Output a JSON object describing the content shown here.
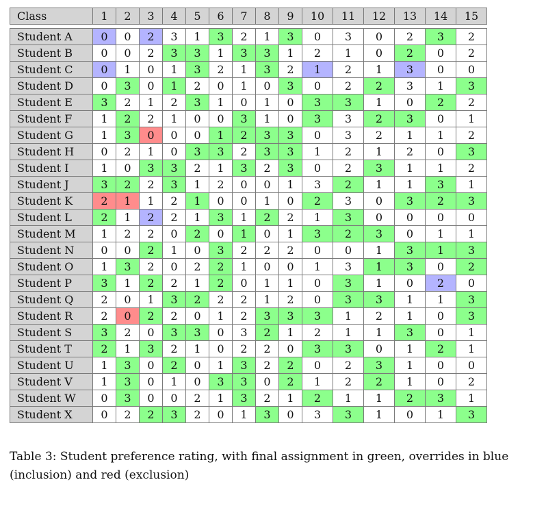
{
  "table": {
    "corner_label": "Class",
    "columns": [
      "1",
      "2",
      "3",
      "4",
      "5",
      "6",
      "7",
      "8",
      "9",
      "10",
      "11",
      "12",
      "13",
      "14",
      "15"
    ],
    "legend": {
      "g": "#8cff8c",
      "b": "#b4b4ff",
      "r": "#ff8c8c"
    },
    "rows": [
      {
        "name": "Student A",
        "values": [
          0,
          0,
          2,
          3,
          1,
          3,
          2,
          1,
          3,
          0,
          3,
          0,
          2,
          3,
          2
        ],
        "marks": [
          "b",
          "",
          "b",
          "",
          "",
          "g",
          "",
          "",
          "g",
          "",
          "",
          "",
          "",
          "g",
          ""
        ]
      },
      {
        "name": "Student B",
        "values": [
          0,
          0,
          2,
          3,
          3,
          1,
          3,
          3,
          1,
          2,
          1,
          0,
          2,
          0,
          2
        ],
        "marks": [
          "",
          "",
          "",
          "g",
          "g",
          "",
          "g",
          "g",
          "",
          "",
          "",
          "",
          "g",
          "",
          ""
        ]
      },
      {
        "name": "Student C",
        "values": [
          0,
          1,
          0,
          1,
          3,
          2,
          1,
          3,
          2,
          1,
          2,
          1,
          3,
          0,
          0
        ],
        "marks": [
          "b",
          "",
          "",
          "",
          "g",
          "",
          "",
          "g",
          "",
          "b",
          "",
          "",
          "b",
          "",
          ""
        ]
      },
      {
        "name": "Student D",
        "values": [
          0,
          3,
          0,
          1,
          2,
          0,
          1,
          0,
          3,
          0,
          2,
          2,
          3,
          1,
          3
        ],
        "marks": [
          "",
          "g",
          "",
          "g",
          "",
          "",
          "",
          "",
          "g",
          "",
          "",
          "g",
          "",
          "",
          "g"
        ]
      },
      {
        "name": "Student E",
        "values": [
          3,
          2,
          1,
          2,
          3,
          1,
          0,
          1,
          0,
          3,
          3,
          1,
          0,
          2,
          2
        ],
        "marks": [
          "g",
          "",
          "",
          "",
          "g",
          "",
          "",
          "",
          "",
          "g",
          "g",
          "",
          "",
          "g",
          ""
        ]
      },
      {
        "name": "Student F",
        "values": [
          1,
          2,
          2,
          1,
          0,
          0,
          3,
          1,
          0,
          3,
          3,
          2,
          3,
          0,
          1
        ],
        "marks": [
          "",
          "g",
          "",
          "",
          "",
          "",
          "g",
          "",
          "",
          "g",
          "",
          "g",
          "g",
          "",
          ""
        ]
      },
      {
        "name": "Student G",
        "values": [
          1,
          3,
          0,
          0,
          0,
          1,
          2,
          3,
          3,
          0,
          3,
          2,
          1,
          1,
          2
        ],
        "marks": [
          "",
          "g",
          "r",
          "",
          "",
          "g",
          "g",
          "g",
          "g",
          "",
          "",
          "",
          "",
          "",
          ""
        ]
      },
      {
        "name": "Student H",
        "values": [
          0,
          2,
          1,
          0,
          3,
          3,
          2,
          3,
          3,
          1,
          2,
          1,
          2,
          0,
          3
        ],
        "marks": [
          "",
          "",
          "",
          "",
          "g",
          "g",
          "",
          "g",
          "g",
          "",
          "",
          "",
          "",
          "",
          "g"
        ]
      },
      {
        "name": "Student I",
        "values": [
          1,
          0,
          3,
          3,
          2,
          1,
          3,
          2,
          3,
          0,
          2,
          3,
          1,
          1,
          2
        ],
        "marks": [
          "",
          "",
          "g",
          "g",
          "",
          "",
          "g",
          "",
          "g",
          "",
          "",
          "g",
          "",
          "",
          ""
        ]
      },
      {
        "name": "Student J",
        "values": [
          3,
          2,
          2,
          3,
          1,
          2,
          0,
          0,
          1,
          3,
          2,
          1,
          1,
          3,
          1
        ],
        "marks": [
          "g",
          "g",
          "",
          "g",
          "",
          "",
          "",
          "",
          "",
          "",
          "g",
          "",
          "",
          "g",
          ""
        ]
      },
      {
        "name": "Student K",
        "values": [
          2,
          1,
          1,
          2,
          1,
          0,
          0,
          1,
          0,
          2,
          3,
          0,
          3,
          2,
          3
        ],
        "marks": [
          "r",
          "r",
          "",
          "",
          "g",
          "",
          "",
          "",
          "",
          "g",
          "",
          "",
          "g",
          "g",
          "g"
        ]
      },
      {
        "name": "Student L",
        "values": [
          2,
          1,
          2,
          2,
          1,
          3,
          1,
          2,
          2,
          1,
          3,
          0,
          0,
          0,
          0
        ],
        "marks": [
          "g",
          "",
          "b",
          "",
          "",
          "g",
          "",
          "g",
          "",
          "",
          "g",
          "",
          "",
          "",
          ""
        ]
      },
      {
        "name": "Student M",
        "values": [
          1,
          2,
          2,
          0,
          2,
          0,
          1,
          0,
          1,
          3,
          2,
          3,
          0,
          1,
          1
        ],
        "marks": [
          "",
          "",
          "",
          "",
          "g",
          "",
          "g",
          "",
          "",
          "g",
          "g",
          "g",
          "",
          "",
          ""
        ]
      },
      {
        "name": "Student N",
        "values": [
          0,
          0,
          2,
          1,
          0,
          3,
          2,
          2,
          2,
          0,
          0,
          1,
          3,
          1,
          3
        ],
        "marks": [
          "",
          "",
          "g",
          "",
          "",
          "g",
          "",
          "",
          "",
          "",
          "",
          "",
          "g",
          "g",
          "g"
        ]
      },
      {
        "name": "Student O",
        "values": [
          1,
          3,
          2,
          0,
          2,
          2,
          1,
          0,
          0,
          1,
          3,
          1,
          3,
          0,
          2
        ],
        "marks": [
          "",
          "g",
          "",
          "",
          "",
          "g",
          "",
          "",
          "",
          "",
          "",
          "g",
          "g",
          "",
          "g"
        ]
      },
      {
        "name": "Student P",
        "values": [
          3,
          1,
          2,
          2,
          1,
          2,
          0,
          1,
          1,
          0,
          3,
          1,
          0,
          2,
          0
        ],
        "marks": [
          "g",
          "",
          "g",
          "",
          "",
          "g",
          "",
          "",
          "",
          "",
          "g",
          "",
          "",
          "b",
          ""
        ]
      },
      {
        "name": "Student Q",
        "values": [
          2,
          0,
          1,
          3,
          2,
          2,
          2,
          1,
          2,
          0,
          3,
          3,
          1,
          1,
          3
        ],
        "marks": [
          "",
          "",
          "",
          "g",
          "g",
          "",
          "",
          "",
          "",
          "",
          "g",
          "g",
          "",
          "",
          "g"
        ]
      },
      {
        "name": "Student R",
        "values": [
          2,
          0,
          2,
          2,
          0,
          1,
          2,
          3,
          3,
          3,
          1,
          2,
          1,
          0,
          3
        ],
        "marks": [
          "",
          "r",
          "g",
          "",
          "",
          "",
          "",
          "g",
          "g",
          "g",
          "",
          "",
          "",
          "",
          "g"
        ]
      },
      {
        "name": "Student S",
        "values": [
          3,
          2,
          0,
          3,
          3,
          0,
          3,
          2,
          1,
          2,
          1,
          1,
          3,
          0,
          1
        ],
        "marks": [
          "g",
          "",
          "",
          "g",
          "g",
          "",
          "",
          "g",
          "",
          "",
          "",
          "",
          "g",
          "",
          ""
        ]
      },
      {
        "name": "Student T",
        "values": [
          2,
          1,
          3,
          2,
          1,
          0,
          2,
          2,
          0,
          3,
          3,
          0,
          1,
          2,
          1
        ],
        "marks": [
          "g",
          "",
          "g",
          "",
          "",
          "",
          "",
          "",
          "",
          "g",
          "g",
          "",
          "",
          "g",
          ""
        ]
      },
      {
        "name": "Student U",
        "values": [
          1,
          3,
          0,
          2,
          0,
          1,
          3,
          2,
          2,
          0,
          2,
          3,
          1,
          0,
          0
        ],
        "marks": [
          "",
          "g",
          "",
          "g",
          "",
          "",
          "g",
          "",
          "g",
          "",
          "",
          "g",
          "",
          "",
          ""
        ]
      },
      {
        "name": "Student V",
        "values": [
          1,
          3,
          0,
          1,
          0,
          3,
          3,
          0,
          2,
          1,
          2,
          2,
          1,
          0,
          2
        ],
        "marks": [
          "",
          "g",
          "",
          "",
          "",
          "g",
          "g",
          "",
          "g",
          "",
          "",
          "g",
          "",
          "",
          ""
        ]
      },
      {
        "name": "Student W",
        "values": [
          0,
          3,
          0,
          0,
          2,
          1,
          3,
          2,
          1,
          2,
          1,
          1,
          2,
          3,
          1
        ],
        "marks": [
          "",
          "g",
          "",
          "",
          "",
          "",
          "g",
          "",
          "",
          "g",
          "",
          "",
          "g",
          "g",
          ""
        ]
      },
      {
        "name": "Student X",
        "values": [
          0,
          2,
          2,
          3,
          2,
          0,
          1,
          3,
          0,
          3,
          3,
          1,
          0,
          1,
          3
        ],
        "marks": [
          "",
          "",
          "g",
          "g",
          "",
          "",
          "",
          "g",
          "",
          "",
          "g",
          "",
          "",
          "",
          "g"
        ]
      }
    ]
  },
  "caption": "Table 3: Student preference rating, with final assignment in green, overrides in blue (inclusion) and red (exclusion)"
}
